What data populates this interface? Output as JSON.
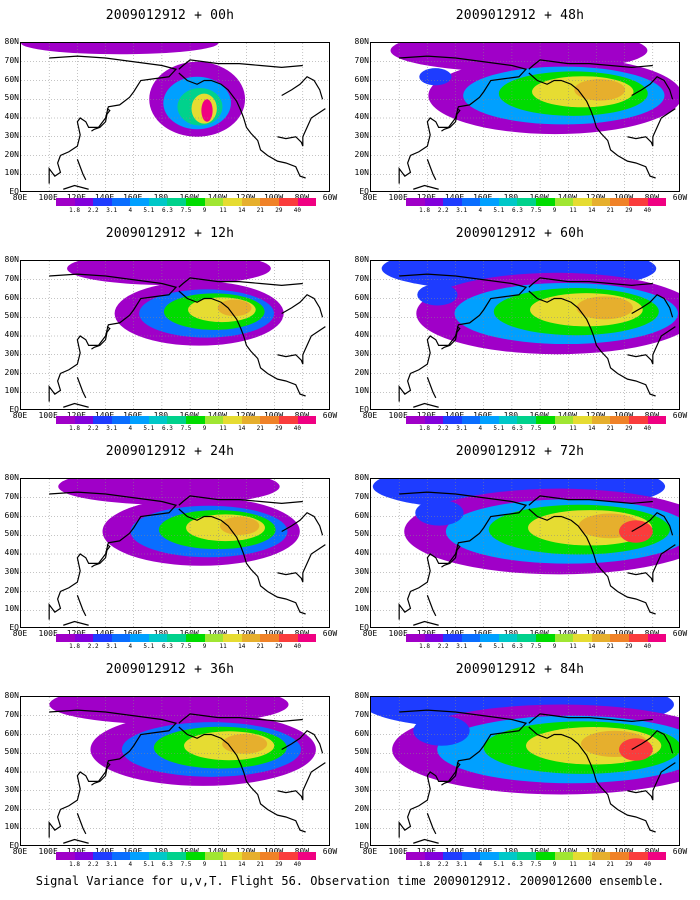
{
  "caption": "Signal Variance for u,v,T. Flight 56. Observation time 2009012912. 2009012600 ensemble.",
  "lat_labels": [
    "80N",
    "70N",
    "60N",
    "50N",
    "40N",
    "30N",
    "20N",
    "10N",
    "EQ"
  ],
  "lon_labels": [
    "80E",
    "100E",
    "120E",
    "140E",
    "160E",
    "180",
    "160W",
    "140W",
    "120W",
    "100W",
    "80W",
    "60W"
  ],
  "colorbar": {
    "labels": [
      "1.8",
      "2.2",
      "3.1",
      "4",
      "5.1",
      "6.3",
      "7.5",
      "9",
      "11",
      "14",
      "21",
      "29",
      "40"
    ],
    "colors": [
      "#a000c8",
      "#8200dc",
      "#1e3cff",
      "#0a6eff",
      "#00a0ff",
      "#00c8c8",
      "#00d28c",
      "#00dc00",
      "#a0e632",
      "#e6dc32",
      "#e6af2d",
      "#f08228",
      "#fa3c3c",
      "#f00082"
    ]
  },
  "panels": [
    {
      "title": "2009012912 + 00h",
      "lead_hours": 0
    },
    {
      "title": "2009012912 + 12h",
      "lead_hours": 12
    },
    {
      "title": "2009012912 + 24h",
      "lead_hours": 24
    },
    {
      "title": "2009012912 + 36h",
      "lead_hours": 36
    },
    {
      "title": "2009012912 + 48h",
      "lead_hours": 48
    },
    {
      "title": "2009012912 + 60h",
      "lead_hours": 60
    },
    {
      "title": "2009012912 + 72h",
      "lead_hours": 72
    },
    {
      "title": "2009012912 + 84h",
      "lead_hours": 84
    }
  ]
}
